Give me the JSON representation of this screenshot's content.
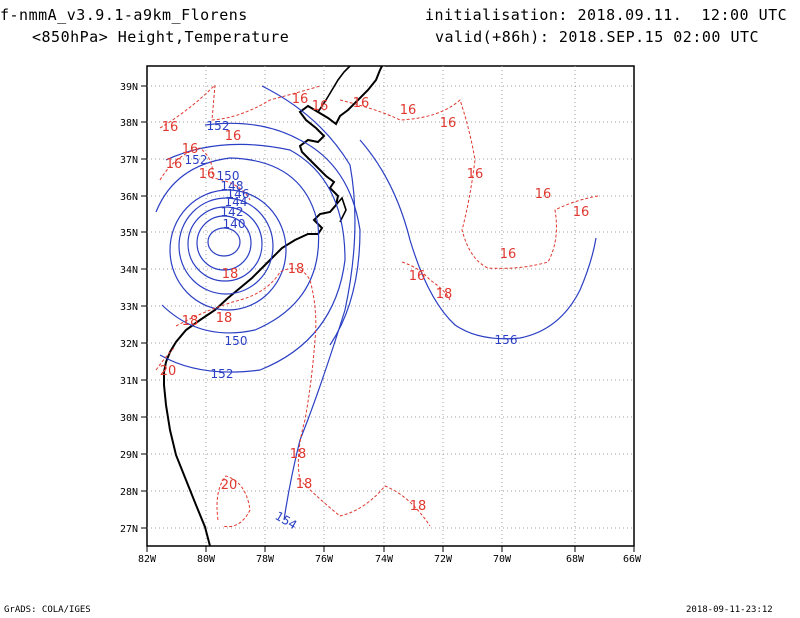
{
  "header": {
    "model": "f-nmmA_v3.9.1-a9km_Florens",
    "level_fields": "<850hPa> Height,Temperature",
    "init": "initialisation: 2018.09.11.  12:00 UTC",
    "valid": "valid(+86h): 2018.SEP.15 02:00 UTC"
  },
  "footer": {
    "credit": "GrADS: COLA/IGES",
    "timestamp": "2018-09-11-23:12"
  },
  "axes": {
    "lat_labels": [
      "39N",
      "38N",
      "37N",
      "36N",
      "35N",
      "34N",
      "33N",
      "32N",
      "31N",
      "30N",
      "29N",
      "28N",
      "27N"
    ],
    "lon_labels": [
      "82W",
      "80W",
      "78W",
      "76W",
      "74W",
      "72W",
      "70W",
      "68W",
      "66W"
    ]
  },
  "colors": {
    "temperature": "#e0382f",
    "height": "#2a3fc4",
    "coast": "#000000",
    "grid": "#a0a0a0"
  },
  "height_labels": [
    "140",
    "142",
    "144",
    "146",
    "148",
    "150",
    "152",
    "150",
    "152",
    "154",
    "156",
    "152"
  ],
  "temperature_labels": [
    "16",
    "16",
    "16",
    "16",
    "16",
    "16",
    "16",
    "16",
    "16",
    "16",
    "16",
    "16",
    "16",
    "16",
    "16",
    "18",
    "18",
    "18",
    "18",
    "18",
    "18",
    "18",
    "20",
    "20",
    "18"
  ]
}
